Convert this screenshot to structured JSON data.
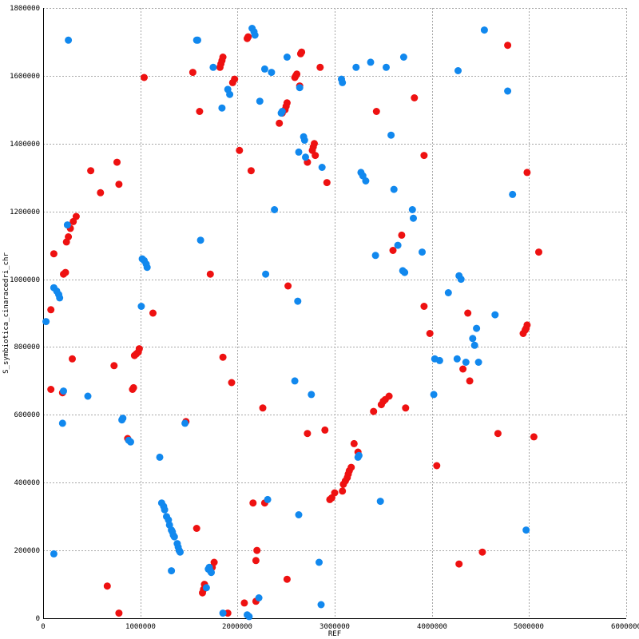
{
  "chart_data": {
    "type": "scatter",
    "xlabel": "REF",
    "ylabel": "S_symbiotica_cinaracedri_chr",
    "xlim": [
      0,
      6000000
    ],
    "ylim": [
      0,
      1800000
    ],
    "grid": true,
    "x_ticks": [
      0,
      1000000,
      2000000,
      3000000,
      4000000,
      5000000,
      6000000
    ],
    "x_tick_labels": [
      "0",
      "1000000",
      "2000000",
      "3000000",
      "4000000",
      "5000000",
      "6000000"
    ],
    "y_ticks": [
      0,
      200000,
      400000,
      600000,
      800000,
      1000000,
      1200000,
      1400000,
      1600000,
      1800000
    ],
    "y_tick_labels": [
      "0",
      "200000",
      "400000",
      "600000",
      "800000",
      "1000000",
      "1200000",
      "1400000",
      "1600000",
      "1800000"
    ],
    "series": [
      {
        "color": "#ee1111",
        "points": [
          [
            80000,
            675000
          ],
          [
            80000,
            910000
          ],
          [
            110000,
            1075000
          ],
          [
            200000,
            665000
          ],
          [
            210000,
            1015000
          ],
          [
            230000,
            1020000
          ],
          [
            240000,
            1110000
          ],
          [
            260000,
            1125000
          ],
          [
            280000,
            1150000
          ],
          [
            300000,
            765000
          ],
          [
            310000,
            1170000
          ],
          [
            340000,
            1185000
          ],
          [
            490000,
            1320000
          ],
          [
            590000,
            1255000
          ],
          [
            660000,
            95000
          ],
          [
            730000,
            745000
          ],
          [
            760000,
            1345000
          ],
          [
            780000,
            1280000
          ],
          [
            780000,
            15000
          ],
          [
            870000,
            530000
          ],
          [
            920000,
            675000
          ],
          [
            930000,
            680000
          ],
          [
            940000,
            775000
          ],
          [
            960000,
            780000
          ],
          [
            980000,
            785000
          ],
          [
            990000,
            795000
          ],
          [
            1040000,
            1595000
          ],
          [
            1130000,
            900000
          ],
          [
            1470000,
            580000
          ],
          [
            1540000,
            1610000
          ],
          [
            1580000,
            265000
          ],
          [
            1610000,
            1495000
          ],
          [
            1640000,
            75000
          ],
          [
            1650000,
            85000
          ],
          [
            1660000,
            100000
          ],
          [
            1720000,
            1015000
          ],
          [
            1740000,
            150000
          ],
          [
            1760000,
            165000
          ],
          [
            1820000,
            1625000
          ],
          [
            1830000,
            1635000
          ],
          [
            1840000,
            1645000
          ],
          [
            1850000,
            1655000
          ],
          [
            1850000,
            770000
          ],
          [
            1900000,
            15000
          ],
          [
            1940000,
            695000
          ],
          [
            1950000,
            1580000
          ],
          [
            1970000,
            1590000
          ],
          [
            2020000,
            1380000
          ],
          [
            2070000,
            45000
          ],
          [
            2100000,
            1710000
          ],
          [
            2110000,
            1715000
          ],
          [
            2140000,
            1320000
          ],
          [
            2160000,
            340000
          ],
          [
            2190000,
            50000
          ],
          [
            2190000,
            170000
          ],
          [
            2200000,
            200000
          ],
          [
            2260000,
            620000
          ],
          [
            2280000,
            340000
          ],
          [
            2430000,
            1460000
          ],
          [
            2460000,
            1490000
          ],
          [
            2490000,
            1500000
          ],
          [
            2500000,
            1510000
          ],
          [
            2510000,
            1520000
          ],
          [
            2510000,
            115000
          ],
          [
            2520000,
            980000
          ],
          [
            2590000,
            1595000
          ],
          [
            2600000,
            1600000
          ],
          [
            2610000,
            1605000
          ],
          [
            2640000,
            1570000
          ],
          [
            2650000,
            1665000
          ],
          [
            2660000,
            1670000
          ],
          [
            2720000,
            1345000
          ],
          [
            2720000,
            545000
          ],
          [
            2770000,
            1380000
          ],
          [
            2780000,
            1390000
          ],
          [
            2790000,
            1400000
          ],
          [
            2800000,
            1365000
          ],
          [
            2850000,
            1625000
          ],
          [
            2900000,
            555000
          ],
          [
            2920000,
            1285000
          ],
          [
            2950000,
            350000
          ],
          [
            2970000,
            355000
          ],
          [
            3000000,
            370000
          ],
          [
            3080000,
            375000
          ],
          [
            3090000,
            395000
          ],
          [
            3110000,
            405000
          ],
          [
            3130000,
            415000
          ],
          [
            3140000,
            425000
          ],
          [
            3150000,
            435000
          ],
          [
            3170000,
            445000
          ],
          [
            3200000,
            515000
          ],
          [
            3240000,
            490000
          ],
          [
            3400000,
            610000
          ],
          [
            3430000,
            1495000
          ],
          [
            3480000,
            630000
          ],
          [
            3500000,
            640000
          ],
          [
            3520000,
            645000
          ],
          [
            3560000,
            655000
          ],
          [
            3600000,
            1085000
          ],
          [
            3690000,
            1130000
          ],
          [
            3730000,
            620000
          ],
          [
            3820000,
            1535000
          ],
          [
            3920000,
            1365000
          ],
          [
            3920000,
            920000
          ],
          [
            3980000,
            840000
          ],
          [
            4050000,
            450000
          ],
          [
            4280000,
            160000
          ],
          [
            4320000,
            735000
          ],
          [
            4370000,
            900000
          ],
          [
            4390000,
            700000
          ],
          [
            4520000,
            195000
          ],
          [
            4680000,
            545000
          ],
          [
            4780000,
            1690000
          ],
          [
            4940000,
            840000
          ],
          [
            4960000,
            850000
          ],
          [
            4970000,
            855000
          ],
          [
            4980000,
            865000
          ],
          [
            4980000,
            1315000
          ],
          [
            5050000,
            535000
          ],
          [
            5100000,
            1080000
          ]
        ]
      },
      {
        "color": "#1188ee",
        "points": [
          [
            30000,
            875000
          ],
          [
            110000,
            975000
          ],
          [
            110000,
            190000
          ],
          [
            140000,
            965000
          ],
          [
            160000,
            955000
          ],
          [
            170000,
            945000
          ],
          [
            200000,
            575000
          ],
          [
            210000,
            670000
          ],
          [
            250000,
            1160000
          ],
          [
            260000,
            1705000
          ],
          [
            460000,
            655000
          ],
          [
            810000,
            585000
          ],
          [
            820000,
            590000
          ],
          [
            880000,
            525000
          ],
          [
            900000,
            520000
          ],
          [
            1010000,
            920000
          ],
          [
            1020000,
            1060000
          ],
          [
            1040000,
            1055000
          ],
          [
            1060000,
            1045000
          ],
          [
            1070000,
            1035000
          ],
          [
            1200000,
            475000
          ],
          [
            1220000,
            340000
          ],
          [
            1240000,
            330000
          ],
          [
            1250000,
            320000
          ],
          [
            1270000,
            300000
          ],
          [
            1290000,
            290000
          ],
          [
            1300000,
            275000
          ],
          [
            1320000,
            140000
          ],
          [
            1320000,
            260000
          ],
          [
            1330000,
            255000
          ],
          [
            1340000,
            245000
          ],
          [
            1350000,
            240000
          ],
          [
            1380000,
            220000
          ],
          [
            1390000,
            210000
          ],
          [
            1400000,
            200000
          ],
          [
            1410000,
            195000
          ],
          [
            1460000,
            575000
          ],
          [
            1580000,
            1705000
          ],
          [
            1590000,
            1705000
          ],
          [
            1620000,
            1115000
          ],
          [
            1680000,
            90000
          ],
          [
            1700000,
            145000
          ],
          [
            1710000,
            150000
          ],
          [
            1720000,
            140000
          ],
          [
            1730000,
            135000
          ],
          [
            1750000,
            1625000
          ],
          [
            1840000,
            1505000
          ],
          [
            1850000,
            15000
          ],
          [
            1900000,
            1560000
          ],
          [
            1920000,
            1545000
          ],
          [
            2100000,
            10000
          ],
          [
            2120000,
            5000
          ],
          [
            2150000,
            1740000
          ],
          [
            2170000,
            1730000
          ],
          [
            2180000,
            1720000
          ],
          [
            2220000,
            60000
          ],
          [
            2230000,
            1525000
          ],
          [
            2280000,
            1620000
          ],
          [
            2290000,
            1015000
          ],
          [
            2310000,
            350000
          ],
          [
            2350000,
            1610000
          ],
          [
            2380000,
            1205000
          ],
          [
            2450000,
            1490000
          ],
          [
            2460000,
            1495000
          ],
          [
            2510000,
            1655000
          ],
          [
            2590000,
            700000
          ],
          [
            2620000,
            935000
          ],
          [
            2630000,
            1375000
          ],
          [
            2640000,
            1565000
          ],
          [
            2630000,
            305000
          ],
          [
            2680000,
            1420000
          ],
          [
            2690000,
            1410000
          ],
          [
            2700000,
            1360000
          ],
          [
            2760000,
            660000
          ],
          [
            2840000,
            165000
          ],
          [
            2860000,
            40000
          ],
          [
            2870000,
            1330000
          ],
          [
            3070000,
            1590000
          ],
          [
            3080000,
            1580000
          ],
          [
            3220000,
            1625000
          ],
          [
            3240000,
            475000
          ],
          [
            3250000,
            480000
          ],
          [
            3270000,
            1315000
          ],
          [
            3290000,
            1305000
          ],
          [
            3320000,
            1290000
          ],
          [
            3370000,
            1640000
          ],
          [
            3420000,
            1070000
          ],
          [
            3470000,
            345000
          ],
          [
            3530000,
            1625000
          ],
          [
            3580000,
            1425000
          ],
          [
            3610000,
            1265000
          ],
          [
            3650000,
            1100000
          ],
          [
            3700000,
            1025000
          ],
          [
            3710000,
            1655000
          ],
          [
            3720000,
            1020000
          ],
          [
            3800000,
            1205000
          ],
          [
            3810000,
            1180000
          ],
          [
            3900000,
            1080000
          ],
          [
            4020000,
            660000
          ],
          [
            4030000,
            765000
          ],
          [
            4080000,
            760000
          ],
          [
            4170000,
            960000
          ],
          [
            4260000,
            765000
          ],
          [
            4270000,
            1615000
          ],
          [
            4280000,
            1010000
          ],
          [
            4300000,
            1000000
          ],
          [
            4350000,
            755000
          ],
          [
            4420000,
            825000
          ],
          [
            4440000,
            805000
          ],
          [
            4460000,
            855000
          ],
          [
            4480000,
            755000
          ],
          [
            4540000,
            1735000
          ],
          [
            4650000,
            895000
          ],
          [
            4780000,
            1555000
          ],
          [
            4830000,
            1250000
          ],
          [
            4970000,
            260000
          ]
        ]
      }
    ]
  }
}
